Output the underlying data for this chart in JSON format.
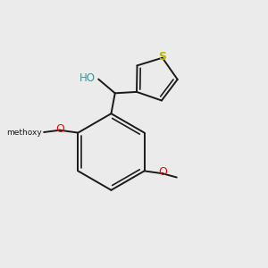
{
  "bg_color": "#ebebeb",
  "bond_color": "#1a1a1a",
  "bond_lw": 1.4,
  "S_color": "#b8b800",
  "O_color": "#ff0000",
  "OH_color": "#4a9090",
  "figsize": [
    3.0,
    3.0
  ],
  "dpi": 100,
  "xlim": [
    0,
    10
  ],
  "ylim": [
    0,
    10
  ]
}
